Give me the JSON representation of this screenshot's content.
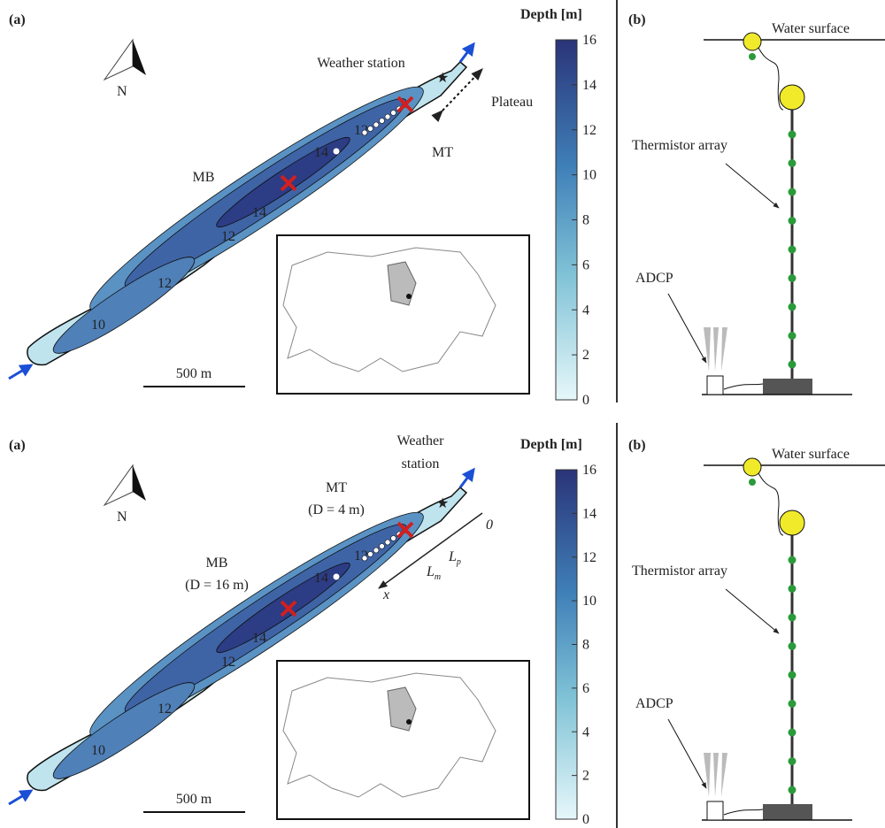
{
  "panels": [
    {
      "map": {
        "label": "(a)",
        "north": "N",
        "weather_station": [
          "Weather station"
        ],
        "plateau": "Plateau",
        "mt": {
          "name": "MT"
        },
        "mb": {
          "name": "MB"
        },
        "contour_labels": [
          "12",
          "14",
          "14",
          "12",
          "12",
          "10"
        ],
        "scale_bar": "500 m",
        "colorbar": {
          "title": "Depth [m]",
          "lim": [
            0,
            16
          ],
          "ticks": [
            0,
            2,
            4,
            6,
            8,
            10,
            12,
            14,
            16
          ]
        }
      },
      "schematic": {
        "label": "(b)",
        "water_surface": "Water surface",
        "thermistor": "Thermistor array",
        "adcp": "ADCP"
      }
    },
    {
      "map": {
        "label": "(a)",
        "north": "N",
        "weather_station": [
          "Weather",
          "station"
        ],
        "mt": {
          "name": "MT",
          "depth": "(D = 4 m)"
        },
        "mb": {
          "name": "MB",
          "depth": "(D = 16 m)"
        },
        "axis": {
          "origin": "0",
          "lm": {
            "base": "L",
            "sub": "m"
          },
          "lp": {
            "base": "L",
            "sub": "p"
          },
          "x": "x"
        },
        "contour_labels": [
          "12",
          "14",
          "14",
          "12",
          "12",
          "10"
        ],
        "scale_bar": "500 m",
        "colorbar": {
          "title": "Depth [m]",
          "lim": [
            0,
            16
          ],
          "ticks": [
            0,
            2,
            4,
            6,
            8,
            10,
            12,
            14,
            16
          ]
        }
      },
      "schematic": {
        "label": "(b)",
        "water_surface": "Water surface",
        "thermistor": "Thermistor array",
        "adcp": "ADCP"
      }
    }
  ]
}
